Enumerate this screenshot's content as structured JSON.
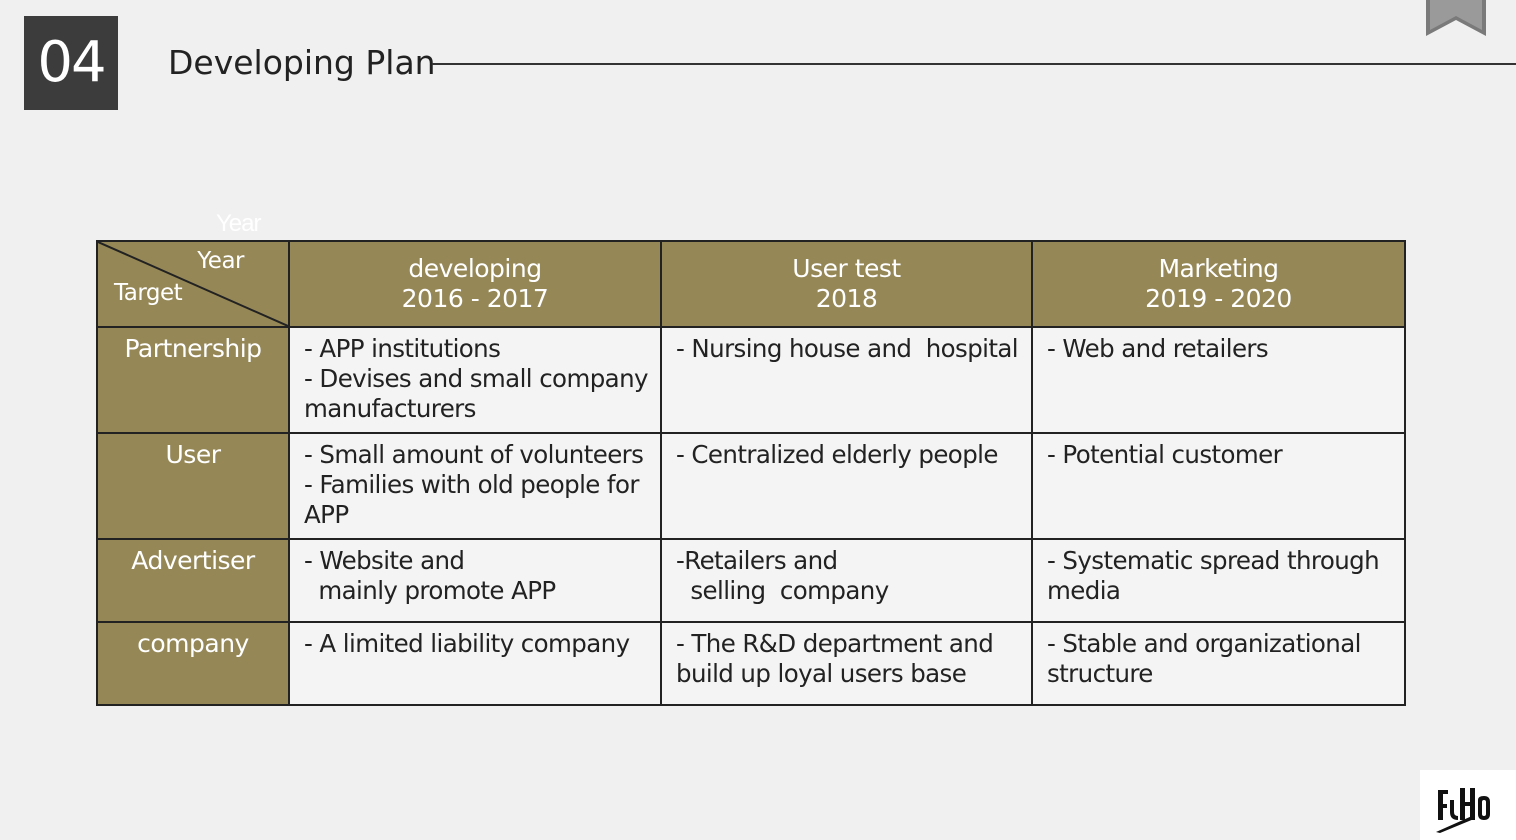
{
  "header": {
    "section_number": "04",
    "title": "Developing Plan"
  },
  "ghost_label": "Year",
  "table": {
    "corner": {
      "year_label": "Year",
      "target_label": "Target"
    },
    "columns": [
      {
        "lines": [
          "developing",
          "2016 - 2017"
        ]
      },
      {
        "lines": [
          "User test",
          "2018"
        ]
      },
      {
        "lines": [
          "Marketing",
          "2019 - 2020"
        ]
      }
    ],
    "rows": [
      {
        "label": "Partnership",
        "cells": [
          [
            "- APP institutions",
            "- Devises and small company",
            "manufacturers"
          ],
          [
            "- Nursing house and  hospital"
          ],
          [
            "- Web and retailers"
          ]
        ]
      },
      {
        "label": "User",
        "cells": [
          [
            "- Small amount of volunteers",
            "- Families with old people for",
            "APP"
          ],
          [
            "- Centralized elderly people"
          ],
          [
            "- Potential customer"
          ]
        ]
      },
      {
        "label": "Advertiser",
        "cells": [
          [
            "- Website and",
            "  mainly promote APP"
          ],
          [
            "-Retailers and",
            "  selling  company"
          ],
          [
            "- Systematic spread through",
            "media"
          ]
        ]
      },
      {
        "label": "company",
        "cells": [
          [
            "- A limited liability company"
          ],
          [
            "- The R&D department and",
            "build up loyal users base"
          ],
          [
            "- Stable and organizational",
            "structure"
          ]
        ]
      }
    ]
  },
  "colors": {
    "header_fill": "#958756",
    "section_box": "#3c3c3c",
    "background": "#f0f0f0"
  },
  "icons": {
    "bookmark": "bookmark-icon",
    "logo": "brand-logo"
  }
}
